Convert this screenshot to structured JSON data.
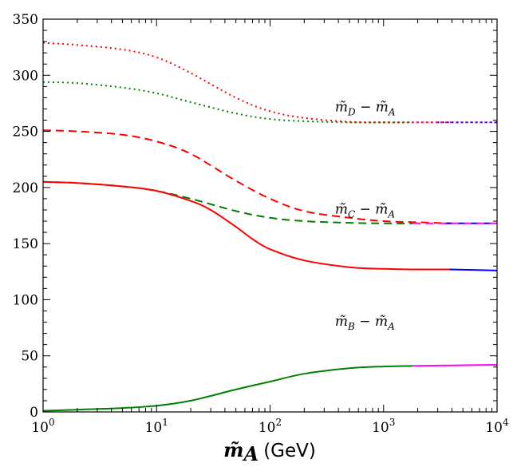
{
  "chart_data": {
    "type": "line",
    "title": "",
    "xlabel": {
      "symbol": "m̃",
      "sub": "A",
      "unit": "(GeV)"
    },
    "ylabel": "",
    "xscale": "log",
    "xlim": [
      1,
      10000
    ],
    "ylim": [
      0,
      350
    ],
    "grid": false,
    "xticks": [
      {
        "value": 1,
        "base": "10",
        "exp": "0"
      },
      {
        "value": 10,
        "base": "10",
        "exp": "1"
      },
      {
        "value": 100,
        "base": "10",
        "exp": "2"
      },
      {
        "value": 1000,
        "base": "10",
        "exp": "3"
      },
      {
        "value": 10000,
        "base": "10",
        "exp": "4"
      }
    ],
    "yticks": [
      {
        "value": 0,
        "label": "0"
      },
      {
        "value": 50,
        "label": "50"
      },
      {
        "value": 100,
        "label": "100"
      },
      {
        "value": 150,
        "label": "150"
      },
      {
        "value": 200,
        "label": "200"
      },
      {
        "value": 250,
        "label": "250"
      },
      {
        "value": 300,
        "label": "300"
      },
      {
        "value": 350,
        "label": "350"
      }
    ],
    "series": [
      {
        "name": "mD-mA red dotted",
        "color": "#ff0000",
        "dash": "2,4",
        "width": 2,
        "x": [
          1,
          2,
          5,
          10,
          20,
          50,
          100,
          200,
          500,
          1000,
          2000,
          4000
        ],
        "y": [
          329,
          327,
          323,
          316,
          302,
          280,
          268,
          262,
          258.5,
          258,
          258,
          258
        ]
      },
      {
        "name": "mD-mA magenta dotted",
        "color": "#ff00ff",
        "dash": "2,4",
        "width": 2,
        "x": [
          1800,
          4000,
          10000
        ],
        "y": [
          258,
          258,
          258
        ]
      },
      {
        "name": "mD-mA green dotted",
        "color": "#008000",
        "dash": "2,4",
        "width": 2,
        "x": [
          1,
          2,
          5,
          10,
          20,
          50,
          100,
          200,
          500,
          1000,
          1800
        ],
        "y": [
          294,
          293,
          289,
          284,
          276,
          266,
          261,
          259,
          258,
          258,
          258
        ]
      },
      {
        "name": "mD-mA blue dotted",
        "color": "#0000ff",
        "dash": "2,4",
        "width": 2,
        "x": [
          3000,
          10000
        ],
        "y": [
          258,
          258
        ]
      },
      {
        "name": "mC-mA red dashed",
        "color": "#ff0000",
        "dash": "10,6",
        "width": 2,
        "x": [
          1,
          2,
          5,
          10,
          20,
          50,
          100,
          200,
          500,
          1000,
          2000,
          4000
        ],
        "y": [
          251,
          250,
          247,
          241,
          230,
          206,
          190,
          179,
          173,
          170,
          169,
          168
        ]
      },
      {
        "name": "mC-mA blue dashed",
        "color": "#0000ff",
        "dash": "10,6",
        "width": 2,
        "x": [
          3500,
          10000
        ],
        "y": [
          168,
          168
        ]
      },
      {
        "name": "mC-mA green dashed",
        "color": "#008000",
        "dash": "10,6",
        "width": 2,
        "x": [
          1,
          2,
          5,
          10,
          20,
          50,
          100,
          200,
          500,
          1000,
          1800
        ],
        "y": [
          205,
          204,
          201,
          197,
          190,
          179,
          173,
          170,
          168.5,
          168,
          168
        ]
      },
      {
        "name": "mC-mA magenta dashed",
        "color": "#ff00ff",
        "dash": "10,6",
        "width": 2,
        "x": [
          1800,
          4000,
          10000
        ],
        "y": [
          168,
          168,
          168
        ]
      },
      {
        "name": "mB-mA red solid",
        "color": "#ff0000",
        "dash": "",
        "width": 2,
        "x": [
          1,
          2,
          5,
          10,
          20,
          30,
          50,
          70,
          100,
          200,
          500,
          1000,
          2000,
          4000
        ],
        "y": [
          205,
          204,
          201,
          197,
          188,
          180,
          165,
          154,
          145,
          135,
          129,
          127.5,
          127,
          127
        ]
      },
      {
        "name": "mB-mA blue solid",
        "color": "#0000ff",
        "dash": "",
        "width": 2,
        "x": [
          3800,
          10000
        ],
        "y": [
          127,
          126
        ]
      },
      {
        "name": "mB-mA green solid",
        "color": "#008000",
        "dash": "",
        "width": 2,
        "x": [
          1,
          2,
          5,
          10,
          20,
          50,
          100,
          200,
          500,
          1000,
          1800
        ],
        "y": [
          1,
          2,
          3.5,
          5.5,
          10,
          20,
          27,
          34,
          39,
          40.5,
          41
        ]
      },
      {
        "name": "mB-mA magenta solid",
        "color": "#ff00ff",
        "dash": "",
        "width": 2,
        "x": [
          1800,
          4000,
          10000
        ],
        "y": [
          41,
          41.5,
          42
        ]
      }
    ],
    "annotations": [
      {
        "name": "annotation-md-ma",
        "main1": "m̃",
        "sub1": "D",
        "op": " − ",
        "main2": "m̃",
        "sub2": "A",
        "at": [
          500,
          272
        ]
      },
      {
        "name": "annotation-mc-ma",
        "main1": "m̃",
        "sub1": "C",
        "op": " − ",
        "main2": "m̃",
        "sub2": "A",
        "at": [
          500,
          181
        ]
      },
      {
        "name": "annotation-mb-ma",
        "main1": "m̃",
        "sub1": "B",
        "op": " − ",
        "main2": "m̃",
        "sub2": "A",
        "at": [
          500,
          81
        ]
      }
    ]
  }
}
